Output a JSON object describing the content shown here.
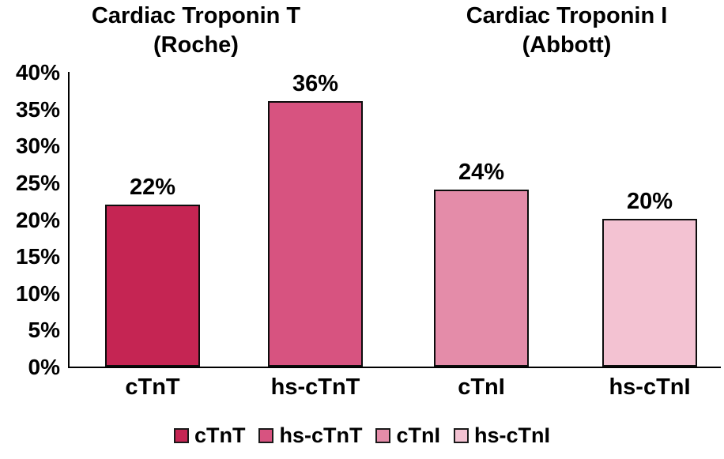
{
  "chart_data": {
    "type": "bar",
    "title": "",
    "group_titles": [
      "Cardiac Troponin T\n(Roche)",
      "Cardiac Troponin I\n(Abbott)"
    ],
    "categories": [
      "cTnT",
      "hs-cTnT",
      "cTnI",
      "hs-cTnI"
    ],
    "values": [
      22,
      36,
      24,
      20
    ],
    "value_labels": [
      "22%",
      "36%",
      "24%",
      "20%"
    ],
    "bar_colors": [
      "#C52553",
      "#D75380",
      "#E48CA9",
      "#F3C2D2"
    ],
    "y_tick_labels": [
      "0%",
      "5%",
      "10%",
      "15%",
      "20%",
      "25%",
      "30%",
      "35%",
      "40%"
    ],
    "y_tick_values": [
      0,
      5,
      10,
      15,
      20,
      25,
      30,
      35,
      40
    ],
    "ylim": [
      0,
      40
    ],
    "xlabel": "",
    "ylabel": "",
    "grid": false,
    "legend_position": "bottom",
    "legend_labels": [
      "cTnT",
      "hs-cTnT",
      "cTnI",
      "hs-cTnI"
    ],
    "axis_color": "#000000",
    "background_color": "#FFFFFF"
  }
}
